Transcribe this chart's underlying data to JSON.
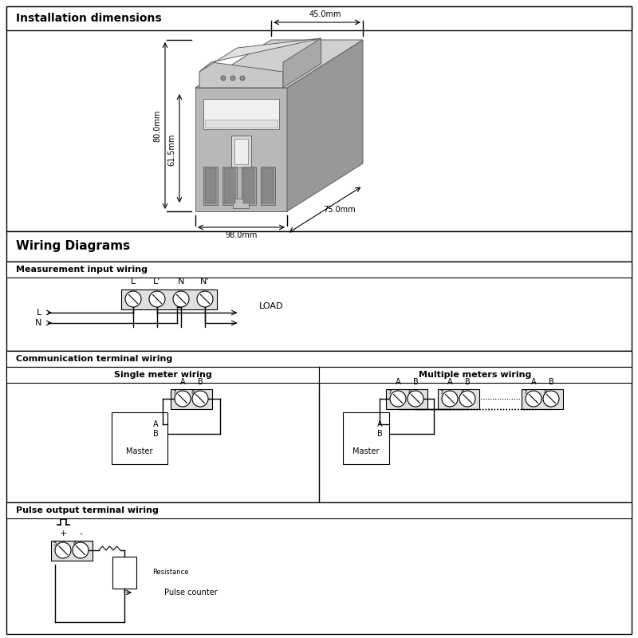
{
  "title_install": "Installation dimensions",
  "title_wiring": "Wiring Diagrams",
  "section_measurement": "Measurement input wiring",
  "section_comm": "Communication terminal wiring",
  "section_single": "Single meter wiring",
  "section_multi": "Multiple meters wiring",
  "section_pulse": "Pulse output terminal wiring",
  "dim_45": "45.0mm",
  "dim_80": "80.0mm",
  "dim_61": "61.5mm",
  "dim_98": "98.0mm",
  "dim_75": "75.0mm",
  "label_L": "L",
  "label_Lprime": "L'",
  "label_N": "N",
  "label_Nprime": "N'",
  "label_LOAD": "LOAD",
  "label_A": "A",
  "label_B": "B",
  "label_Master": "Master",
  "label_Resistance": "Resistance",
  "label_Pulse": "Pulse counter",
  "label_plus": "+",
  "label_minus": "-",
  "bg_color": "#ffffff"
}
